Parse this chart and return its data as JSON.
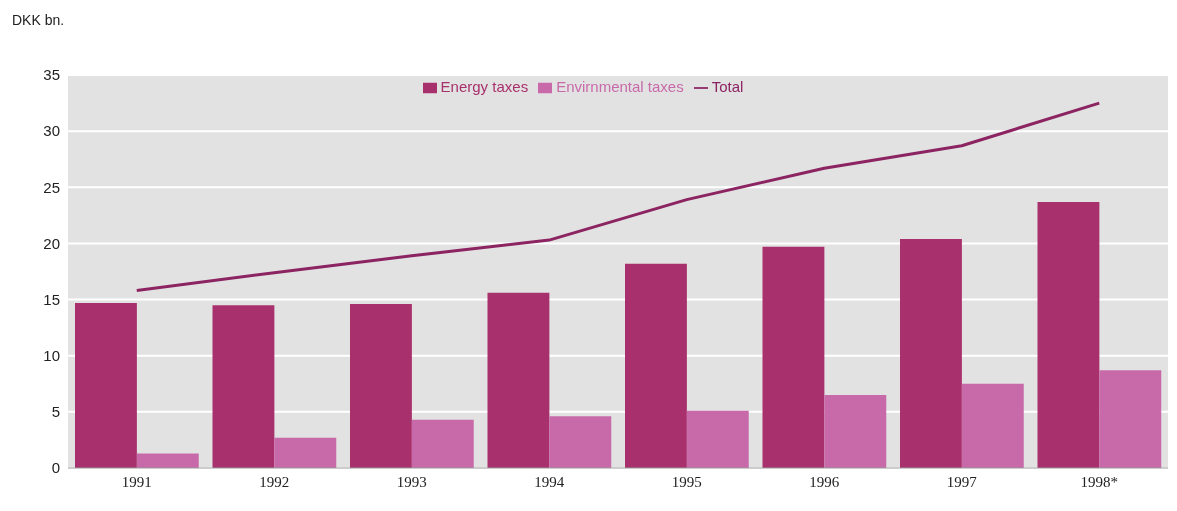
{
  "chart_data": {
    "type": "bar",
    "ylabel": "DKK bn.",
    "categories": [
      "1991",
      "1992",
      "1993",
      "1994",
      "1995",
      "1996",
      "1997",
      "1998*"
    ],
    "series": [
      {
        "name": "Energy taxes",
        "color": "#a8306c",
        "values": [
          14.7,
          14.5,
          14.6,
          15.6,
          18.2,
          19.7,
          20.4,
          23.7
        ]
      },
      {
        "name": "Envirnmental taxes",
        "color": "#c86aaa",
        "values": [
          1.3,
          2.7,
          4.3,
          4.6,
          5.1,
          6.5,
          7.5,
          8.7
        ]
      },
      {
        "name": "Total",
        "type": "line",
        "color": "#8c2462",
        "values": [
          15.8,
          17.4,
          18.9,
          20.3,
          23.9,
          26.7,
          28.7,
          32.5
        ]
      }
    ],
    "ylim": [
      0,
      35
    ],
    "yticks": [
      0,
      5,
      10,
      15,
      20,
      25,
      30,
      35
    ],
    "grid": "y",
    "legend": "top"
  }
}
